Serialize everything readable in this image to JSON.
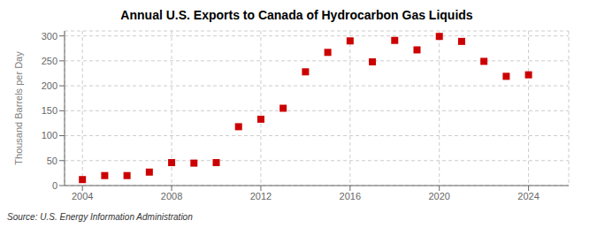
{
  "chart_data": {
    "type": "scatter",
    "title": "Annual U.S. Exports to Canada of Hydrocarbon Gas Liquids",
    "y_label": "Thousand Barrels per Day",
    "annotations": [
      "Source: U.S. Energy Information Administration"
    ],
    "x": [
      2004,
      2005,
      2006,
      2007,
      2008,
      2009,
      2010,
      2011,
      2012,
      2013,
      2014,
      2015,
      2016,
      2017,
      2018,
      2019,
      2020,
      2021,
      2022,
      2023,
      2024
    ],
    "values": [
      12,
      20,
      20,
      27,
      46,
      45,
      46,
      118,
      133,
      155,
      228,
      267,
      290,
      248,
      291,
      272,
      299,
      289,
      249,
      219,
      222
    ],
    "color": "#cc0000",
    "marker": "square",
    "xlim": [
      2003.2,
      2025.8
    ],
    "xticks": [
      2004,
      2008,
      2012,
      2016,
      2020,
      2024
    ],
    "ylim": [
      0,
      310
    ],
    "yticks": [
      0,
      50,
      100,
      150,
      200,
      250,
      300
    ],
    "grid": true
  }
}
